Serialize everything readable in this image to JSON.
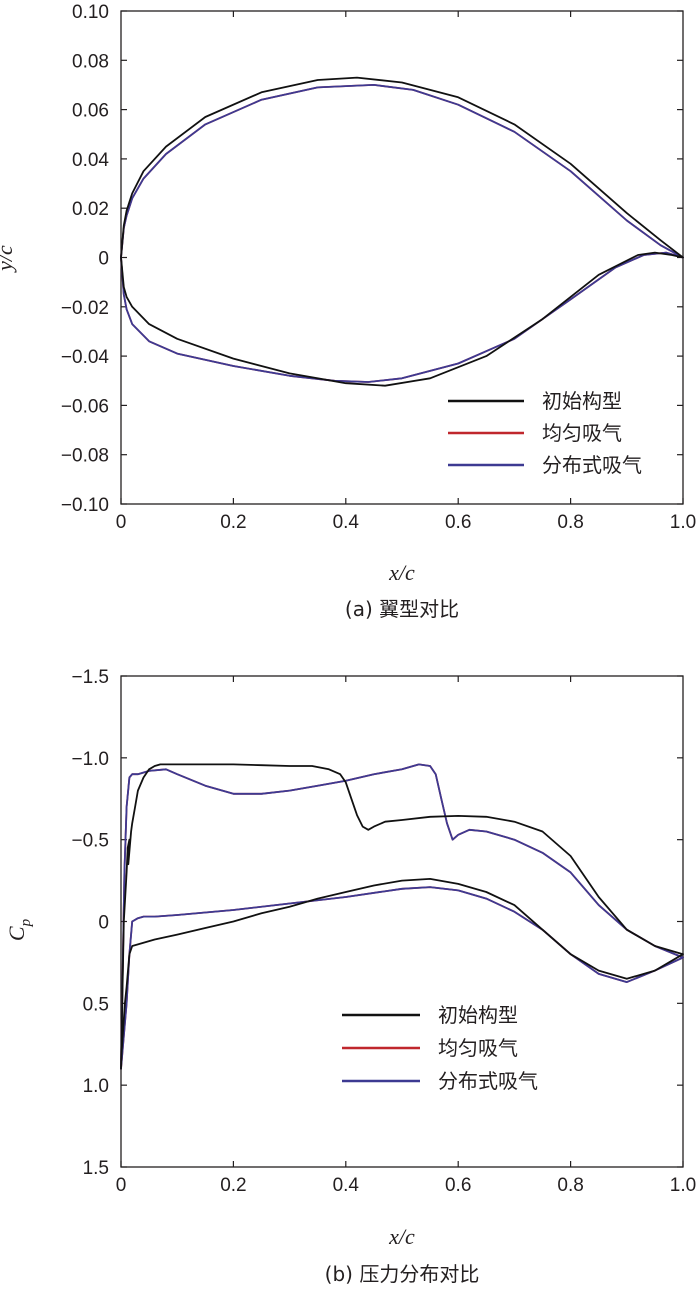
{
  "colors": {
    "initial": "#111111",
    "uniform": "#c0272d",
    "distributed": "#3d3a92",
    "axis": "#231f20"
  },
  "chart_data": [
    {
      "type": "line",
      "caption": "(a) 翼型对比",
      "xlabel": "x/c",
      "ylabel": "y/c",
      "xlim": [
        0,
        1.0
      ],
      "ylim": [
        -0.1,
        0.1
      ],
      "y_inverted": false,
      "grid": false,
      "legend_position": "bottom-right",
      "xticks": [
        0,
        0.2,
        0.4,
        0.6,
        0.8,
        1.0
      ],
      "xtick_labels": [
        "0",
        "0.2",
        "0.4",
        "0.6",
        "0.8",
        "1.0"
      ],
      "yticks": [
        0.1,
        0.08,
        0.06,
        0.04,
        0.02,
        0,
        -0.02,
        -0.04,
        -0.06,
        -0.08,
        -0.1
      ],
      "ytick_labels": [
        "0.10",
        "0.08",
        "0.06",
        "0.04",
        "0.02",
        "0",
        "−0.02",
        "−0.04",
        "−0.06",
        "−0.08",
        "−0.10"
      ],
      "series": [
        {
          "name": "初始构型",
          "color": "#111111",
          "x": [
            1.0,
            0.96,
            0.9,
            0.8,
            0.7,
            0.6,
            0.5,
            0.42,
            0.35,
            0.25,
            0.15,
            0.08,
            0.04,
            0.02,
            0.01,
            0.005,
            0.0,
            0.005,
            0.01,
            0.02,
            0.05,
            0.1,
            0.2,
            0.3,
            0.4,
            0.47,
            0.55,
            0.65,
            0.75,
            0.85,
            0.92,
            0.95,
            0.98,
            1.0
          ],
          "y": [
            0.0,
            0.007,
            0.018,
            0.038,
            0.054,
            0.065,
            0.071,
            0.073,
            0.072,
            0.067,
            0.057,
            0.045,
            0.035,
            0.026,
            0.019,
            0.013,
            0.0,
            -0.012,
            -0.016,
            -0.02,
            -0.027,
            -0.033,
            -0.041,
            -0.047,
            -0.051,
            -0.052,
            -0.049,
            -0.04,
            -0.025,
            -0.007,
            0.001,
            0.002,
            0.001,
            0.0
          ]
        },
        {
          "name": "均匀吸气",
          "color": "#c0272d",
          "x": [
            1.0,
            0.96,
            0.9,
            0.8,
            0.7,
            0.6,
            0.52,
            0.45,
            0.35,
            0.25,
            0.15,
            0.08,
            0.04,
            0.02,
            0.01,
            0.005,
            0.0,
            0.005,
            0.01,
            0.02,
            0.05,
            0.1,
            0.2,
            0.3,
            0.38,
            0.44,
            0.5,
            0.6,
            0.7,
            0.8,
            0.88,
            0.93,
            0.97,
            1.0
          ],
          "y": [
            0.0,
            0.005,
            0.015,
            0.035,
            0.051,
            0.062,
            0.068,
            0.07,
            0.069,
            0.064,
            0.054,
            0.042,
            0.032,
            0.024,
            0.017,
            0.012,
            0.0,
            -0.015,
            -0.021,
            -0.027,
            -0.034,
            -0.039,
            -0.044,
            -0.048,
            -0.05,
            -0.0505,
            -0.049,
            -0.043,
            -0.033,
            -0.017,
            -0.004,
            0.001,
            0.002,
            0.0
          ]
        },
        {
          "name": "分布式吸气",
          "color": "#3d3a92",
          "x": [
            1.0,
            0.96,
            0.9,
            0.8,
            0.7,
            0.6,
            0.52,
            0.45,
            0.35,
            0.25,
            0.15,
            0.08,
            0.04,
            0.02,
            0.01,
            0.005,
            0.0,
            0.005,
            0.01,
            0.02,
            0.05,
            0.1,
            0.2,
            0.3,
            0.38,
            0.44,
            0.5,
            0.6,
            0.7,
            0.8,
            0.88,
            0.93,
            0.97,
            1.0
          ],
          "y": [
            0.0,
            0.005,
            0.015,
            0.035,
            0.051,
            0.062,
            0.068,
            0.07,
            0.069,
            0.064,
            0.054,
            0.042,
            0.032,
            0.024,
            0.017,
            0.012,
            0.0,
            -0.015,
            -0.021,
            -0.027,
            -0.034,
            -0.039,
            -0.044,
            -0.048,
            -0.05,
            -0.0505,
            -0.049,
            -0.043,
            -0.033,
            -0.017,
            -0.004,
            0.001,
            0.002,
            0.0
          ]
        }
      ]
    },
    {
      "type": "line",
      "caption": "(b) 压力分布对比",
      "xlabel": "x/c",
      "ylabel": "C_p",
      "xlim": [
        0,
        1.0
      ],
      "ylim": [
        -1.5,
        1.5
      ],
      "y_inverted": true,
      "grid": false,
      "legend_position": "bottom-center",
      "xticks": [
        0,
        0.2,
        0.4,
        0.6,
        0.8,
        1.0
      ],
      "xtick_labels": [
        "0",
        "0.2",
        "0.4",
        "0.6",
        "0.8",
        "1.0"
      ],
      "yticks": [
        -1.5,
        -1.0,
        -0.5,
        0,
        0.5,
        1.0,
        1.5
      ],
      "ytick_labels": [
        "−1.5",
        "−1.0",
        "−0.5",
        "0",
        "0.5",
        "1.0",
        "1.5"
      ],
      "series": [
        {
          "name": "初始构型",
          "color": "#111111",
          "x": [
            0.0,
            0.005,
            0.01,
            0.012,
            0.015,
            0.013,
            0.018,
            0.02,
            0.025,
            0.03,
            0.04,
            0.05,
            0.06,
            0.07,
            0.1,
            0.15,
            0.2,
            0.25,
            0.3,
            0.34,
            0.37,
            0.39,
            0.4,
            0.41,
            0.42,
            0.43,
            0.44,
            0.45,
            0.47,
            0.5,
            0.55,
            0.6,
            0.65,
            0.7,
            0.75,
            0.8,
            0.85,
            0.9,
            0.95,
            1.0,
            0.95,
            0.9,
            0.85,
            0.8,
            0.75,
            0.7,
            0.65,
            0.6,
            0.55,
            0.5,
            0.45,
            0.4,
            0.35,
            0.3,
            0.25,
            0.2,
            0.15,
            0.1,
            0.06,
            0.04,
            0.03,
            0.02,
            0.015,
            0.01,
            0.007,
            0.005,
            0.003,
            0.001,
            0.0
          ],
          "y": [
            0.9,
            0.0,
            -0.3,
            -0.45,
            -0.5,
            -0.35,
            -0.55,
            -0.6,
            -0.7,
            -0.8,
            -0.88,
            -0.93,
            -0.95,
            -0.96,
            -0.96,
            -0.96,
            -0.96,
            -0.955,
            -0.95,
            -0.95,
            -0.93,
            -0.9,
            -0.85,
            -0.75,
            -0.65,
            -0.58,
            -0.56,
            -0.58,
            -0.61,
            -0.62,
            -0.64,
            -0.645,
            -0.64,
            -0.61,
            -0.55,
            -0.4,
            -0.15,
            0.05,
            0.15,
            0.2,
            0.3,
            0.35,
            0.3,
            0.2,
            0.05,
            -0.1,
            -0.18,
            -0.23,
            -0.26,
            -0.25,
            -0.22,
            -0.18,
            -0.14,
            -0.09,
            -0.05,
            0.0,
            0.04,
            0.08,
            0.11,
            0.13,
            0.14,
            0.15,
            0.2,
            0.4,
            0.5,
            0.6,
            0.7,
            0.8,
            0.9
          ]
        },
        {
          "name": "均匀吸气",
          "color": "#c0272d",
          "x": [
            0.0,
            0.003,
            0.006,
            0.01,
            0.015,
            0.02,
            0.03,
            0.05,
            0.08,
            0.1,
            0.15,
            0.2,
            0.25,
            0.3,
            0.35,
            0.4,
            0.45,
            0.5,
            0.53,
            0.55,
            0.56,
            0.57,
            0.58,
            0.59,
            0.6,
            0.62,
            0.65,
            0.7,
            0.75,
            0.8,
            0.85,
            0.9,
            0.95,
            1.0,
            0.95,
            0.9,
            0.85,
            0.8,
            0.75,
            0.7,
            0.65,
            0.6,
            0.55,
            0.5,
            0.4,
            0.3,
            0.2,
            0.1,
            0.06,
            0.04,
            0.03,
            0.02,
            0.015,
            0.01,
            0.005,
            0.0
          ],
          "y": [
            0.9,
            0.3,
            -0.3,
            -0.7,
            -0.88,
            -0.9,
            -0.9,
            -0.92,
            -0.93,
            -0.9,
            -0.83,
            -0.78,
            -0.78,
            -0.8,
            -0.83,
            -0.86,
            -0.9,
            -0.93,
            -0.96,
            -0.95,
            -0.9,
            -0.75,
            -0.6,
            -0.5,
            -0.53,
            -0.56,
            -0.55,
            -0.5,
            -0.42,
            -0.3,
            -0.1,
            0.05,
            0.15,
            0.22,
            0.3,
            0.37,
            0.32,
            0.2,
            0.05,
            -0.06,
            -0.14,
            -0.19,
            -0.21,
            -0.2,
            -0.15,
            -0.11,
            -0.07,
            -0.04,
            -0.03,
            -0.03,
            -0.02,
            0.0,
            0.2,
            0.5,
            0.7,
            0.9
          ]
        },
        {
          "name": "分布式吸气",
          "color": "#3d3a92",
          "x": [
            0.0,
            0.003,
            0.006,
            0.01,
            0.015,
            0.02,
            0.03,
            0.05,
            0.08,
            0.1,
            0.15,
            0.2,
            0.25,
            0.3,
            0.35,
            0.4,
            0.45,
            0.5,
            0.53,
            0.55,
            0.56,
            0.57,
            0.58,
            0.59,
            0.6,
            0.62,
            0.65,
            0.7,
            0.75,
            0.8,
            0.85,
            0.9,
            0.95,
            1.0,
            0.95,
            0.9,
            0.85,
            0.8,
            0.75,
            0.7,
            0.65,
            0.6,
            0.55,
            0.5,
            0.4,
            0.3,
            0.2,
            0.1,
            0.06,
            0.04,
            0.03,
            0.02,
            0.015,
            0.01,
            0.005,
            0.0
          ],
          "y": [
            0.9,
            0.3,
            -0.3,
            -0.7,
            -0.88,
            -0.9,
            -0.9,
            -0.92,
            -0.93,
            -0.9,
            -0.83,
            -0.78,
            -0.78,
            -0.8,
            -0.83,
            -0.86,
            -0.9,
            -0.93,
            -0.96,
            -0.95,
            -0.9,
            -0.75,
            -0.6,
            -0.5,
            -0.53,
            -0.56,
            -0.55,
            -0.5,
            -0.42,
            -0.3,
            -0.1,
            0.05,
            0.15,
            0.22,
            0.3,
            0.37,
            0.32,
            0.2,
            0.05,
            -0.06,
            -0.14,
            -0.19,
            -0.21,
            -0.2,
            -0.15,
            -0.11,
            -0.07,
            -0.04,
            -0.03,
            -0.03,
            -0.02,
            0.0,
            0.2,
            0.5,
            0.7,
            0.9
          ]
        }
      ]
    }
  ]
}
